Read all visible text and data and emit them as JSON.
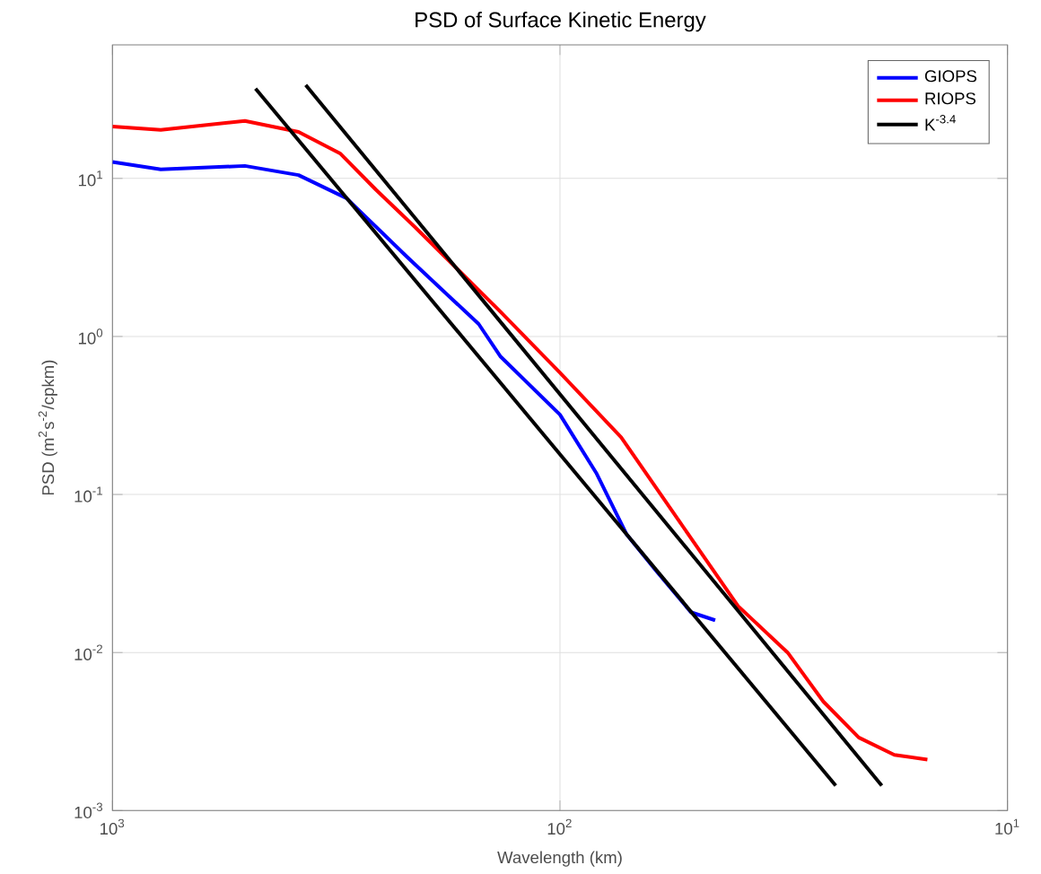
{
  "chart_data": {
    "type": "line",
    "title": "PSD of Surface Kinetic Energy",
    "xlabel": "Wavelength (km)",
    "ylabel": "PSD (m$^{2}$s$^{-2}$/cpkm)",
    "log": "xy",
    "grid": true,
    "legend": "top right",
    "xlim": [
      1000,
      10
    ],
    "ylim": [
      0.001,
      70
    ],
    "xticks": [
      {
        "value": 1000,
        "label": "10$^{3}$"
      },
      {
        "value": 100,
        "label": "10$^{2}$"
      },
      {
        "value": 10,
        "label": "10$^{1}$"
      }
    ],
    "yticks": [
      {
        "value": 0.001,
        "label": "10$^{-3}$"
      },
      {
        "value": 0.01,
        "label": "10$^{-2}$"
      },
      {
        "value": 0.1,
        "label": "10$^{-1}$"
      },
      {
        "value": 1,
        "label": "10$^{0}$"
      },
      {
        "value": 10,
        "label": "10$^{1}$"
      }
    ],
    "series": [
      {
        "name": "GIOPS",
        "color": "#0000ff",
        "x": [
          1000,
          780,
          506,
          384,
          300,
          220,
          152,
          136,
          100,
          83,
          71,
          61,
          51,
          45
        ],
        "values": [
          12.7,
          11.4,
          12.0,
          10.5,
          7.5,
          3.2,
          1.2,
          0.75,
          0.32,
          0.137,
          0.056,
          0.033,
          0.018,
          0.016
        ]
      },
      {
        "name": "RIOPS",
        "color": "#ff0000",
        "x": [
          1000,
          780,
          506,
          384,
          310,
          258,
          209,
          136,
          100,
          73,
          54,
          40,
          31,
          25.8,
          21.5,
          17.9,
          15.1
        ],
        "values": [
          21.3,
          20.3,
          23.1,
          19.7,
          14.4,
          8.5,
          4.8,
          1.44,
          0.59,
          0.23,
          0.067,
          0.0197,
          0.01,
          0.0049,
          0.0029,
          0.00225,
          0.0021
        ]
      },
      {
        "name": "K$^{-3.4}$",
        "color": "#000000",
        "x": [
          479,
          24.2
        ],
        "values": [
          37,
          0.00144
        ]
      },
      {
        "color": "#000000",
        "x": [
          370,
          19.1
        ],
        "values": [
          39,
          0.00144
        ]
      }
    ]
  }
}
